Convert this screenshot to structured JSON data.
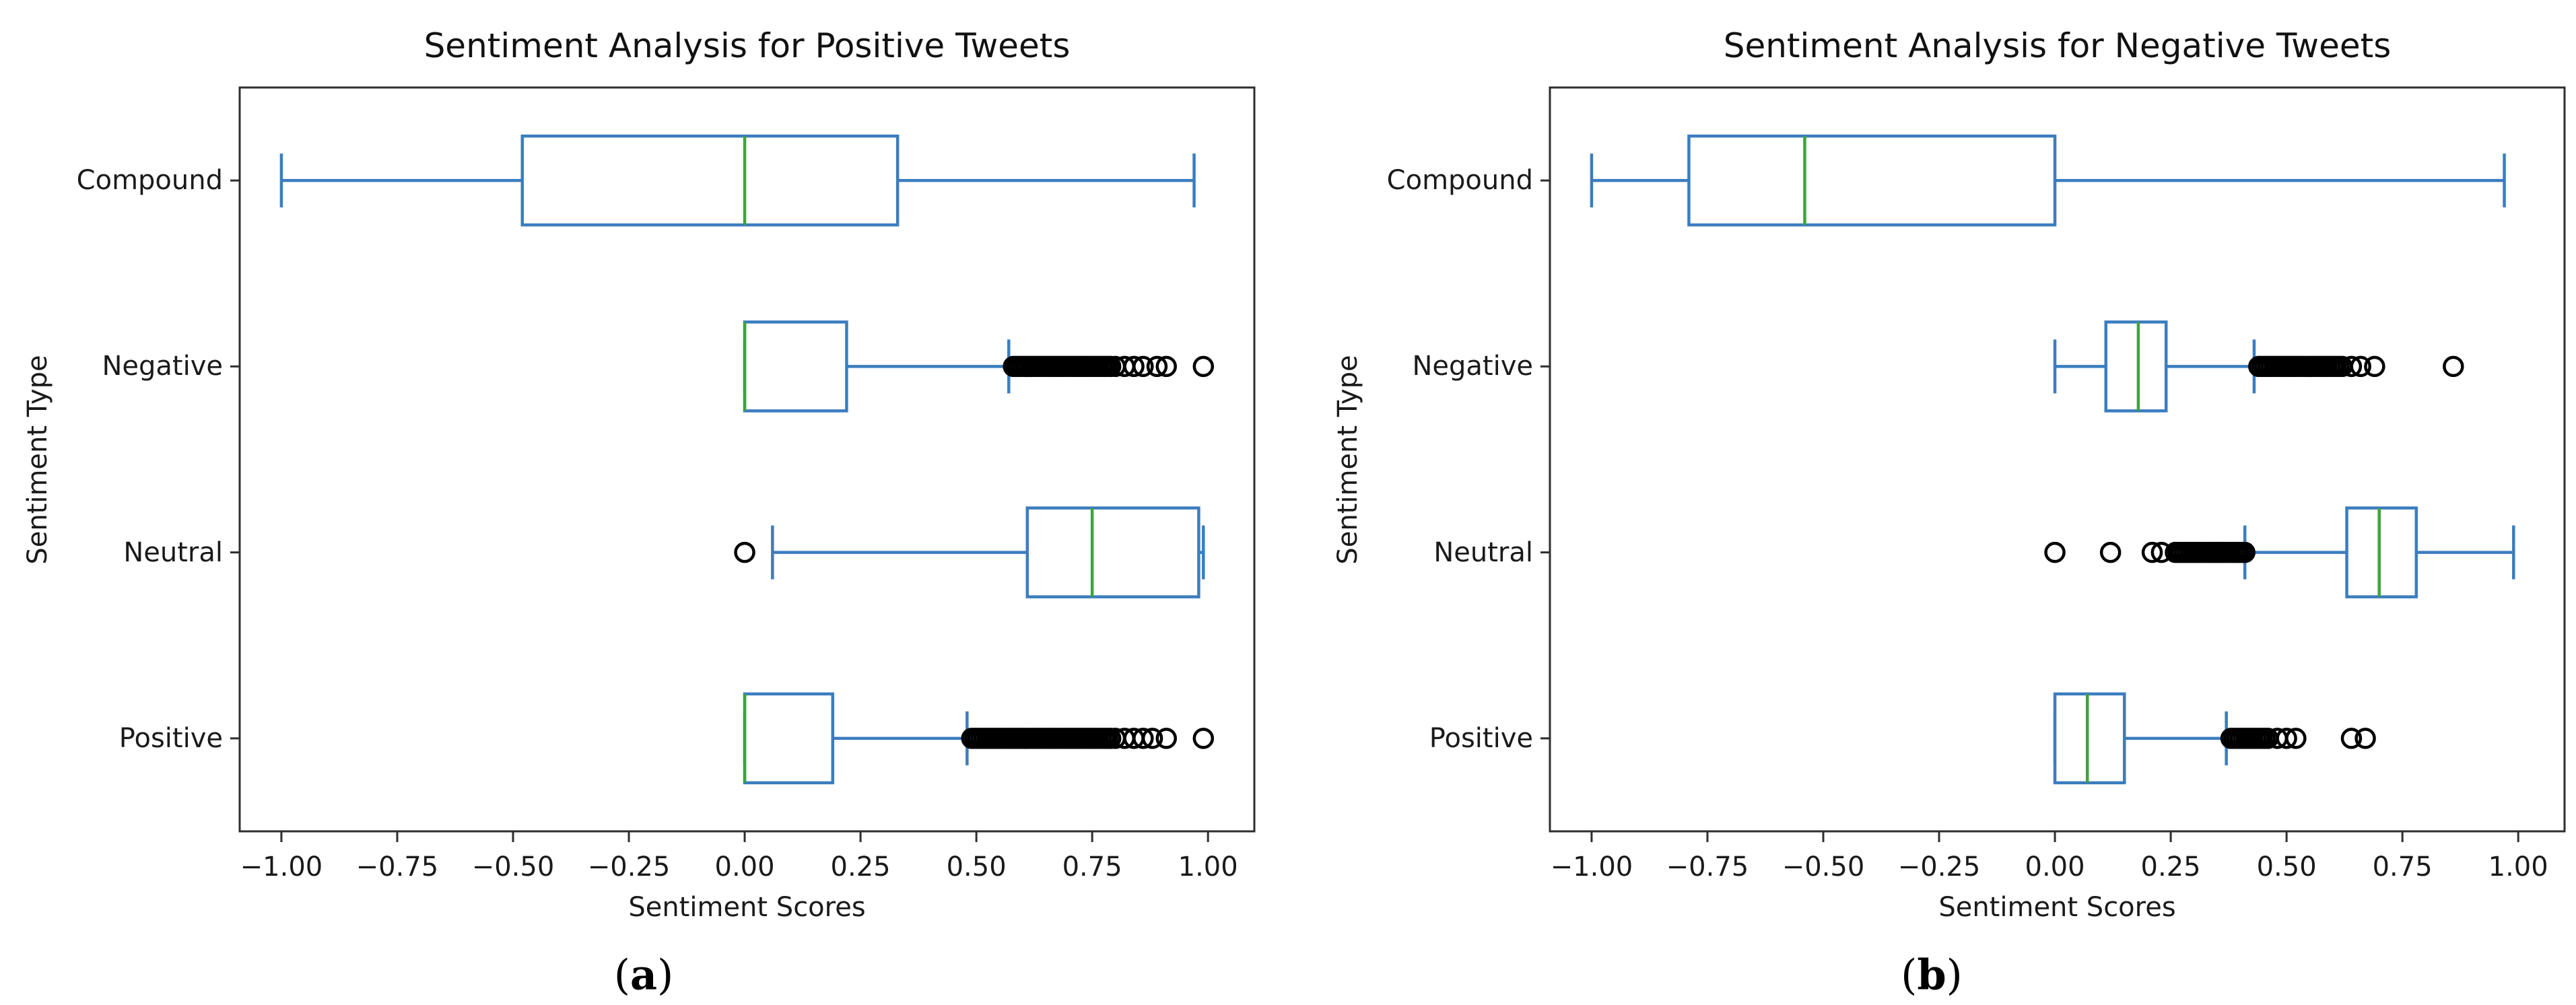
{
  "figure": {
    "background": "#ffffff",
    "captions": [
      {
        "open": "(",
        "letter": "a",
        "close": ")"
      },
      {
        "open": "(",
        "letter": "b",
        "close": ")"
      }
    ]
  },
  "chart_data": [
    {
      "type": "boxplot",
      "orientation": "horizontal",
      "title": "Sentiment Analysis for Positive Tweets",
      "xlabel": "Sentiment Scores",
      "ylabel": "Sentiment Type",
      "caption": "(a)",
      "grid": false,
      "legend": null,
      "xlim": [
        -1.09,
        1.1
      ],
      "xticks": [
        -1.0,
        -0.75,
        -0.5,
        -0.25,
        0.0,
        0.25,
        0.5,
        0.75,
        1.0
      ],
      "xtick_labels": [
        "−1.00",
        "−0.75",
        "−0.50",
        "−0.25",
        "0.00",
        "0.25",
        "0.50",
        "0.75",
        "1.00"
      ],
      "categories": [
        "Compound",
        "Negative",
        "Neutral",
        "Positive"
      ],
      "series": [
        {
          "category": "Compound",
          "whislo": -1.0,
          "q1": -0.48,
          "med": 0.0,
          "q3": 0.33,
          "whishi": 0.97,
          "outliers": [],
          "outlier_clusters": []
        },
        {
          "category": "Negative",
          "whislo": 0.0,
          "q1": 0.0,
          "med": 0.0,
          "q3": 0.22,
          "whishi": 0.57,
          "outliers": [
            0.8,
            0.82,
            0.84,
            0.86,
            0.89,
            0.91,
            0.99
          ],
          "outlier_clusters": [
            {
              "from": 0.58,
              "to": 0.79,
              "count": 34
            }
          ]
        },
        {
          "category": "Neutral",
          "whislo": 0.06,
          "q1": 0.61,
          "med": 0.75,
          "q3": 0.98,
          "whishi": 0.99,
          "outliers": [
            0.0
          ],
          "outlier_clusters": []
        },
        {
          "category": "Positive",
          "whislo": 0.0,
          "q1": 0.0,
          "med": 0.0,
          "q3": 0.19,
          "whishi": 0.48,
          "outliers": [
            0.8,
            0.82,
            0.84,
            0.86,
            0.88,
            0.91,
            0.99
          ],
          "outlier_clusters": [
            {
              "from": 0.49,
              "to": 0.79,
              "count": 46
            }
          ]
        }
      ],
      "colors": {
        "box": "#3b7dbf",
        "median": "#3fa33c",
        "outlier": "#000000",
        "axis": "#2e2e2e",
        "text": "#1a1a1a"
      }
    },
    {
      "type": "boxplot",
      "orientation": "horizontal",
      "title": "Sentiment Analysis for Negative Tweets",
      "xlabel": "Sentiment Scores",
      "ylabel": "Sentiment Type",
      "caption": "(b)",
      "grid": false,
      "legend": null,
      "xlim": [
        -1.09,
        1.1
      ],
      "xticks": [
        -1.0,
        -0.75,
        -0.5,
        -0.25,
        0.0,
        0.25,
        0.5,
        0.75,
        1.0
      ],
      "xtick_labels": [
        "−1.00",
        "−0.75",
        "−0.50",
        "−0.25",
        "0.00",
        "0.25",
        "0.50",
        "0.75",
        "1.00"
      ],
      "categories": [
        "Compound",
        "Negative",
        "Neutral",
        "Positive"
      ],
      "series": [
        {
          "category": "Compound",
          "whislo": -1.0,
          "q1": -0.79,
          "med": -0.54,
          "q3": 0.0,
          "whishi": 0.97,
          "outliers": [],
          "outlier_clusters": []
        },
        {
          "category": "Negative",
          "whislo": 0.0,
          "q1": 0.11,
          "med": 0.18,
          "q3": 0.24,
          "whishi": 0.43,
          "outliers": [
            0.64,
            0.66,
            0.69,
            0.86
          ],
          "outlier_clusters": [
            {
              "from": 0.44,
              "to": 0.62,
              "count": 28
            }
          ]
        },
        {
          "category": "Neutral",
          "whislo": 0.41,
          "q1": 0.63,
          "med": 0.7,
          "q3": 0.78,
          "whishi": 0.99,
          "outliers": [
            0.0,
            0.12,
            0.21,
            0.23
          ],
          "outlier_clusters": [
            {
              "from": 0.26,
              "to": 0.41,
              "count": 24
            }
          ]
        },
        {
          "category": "Positive",
          "whislo": 0.0,
          "q1": 0.0,
          "med": 0.07,
          "q3": 0.15,
          "whishi": 0.37,
          "outliers": [
            0.48,
            0.5,
            0.52,
            0.64,
            0.67
          ],
          "outlier_clusters": [
            {
              "from": 0.38,
              "to": 0.46,
              "count": 13
            }
          ]
        }
      ],
      "colors": {
        "box": "#3b7dbf",
        "median": "#3fa33c",
        "outlier": "#000000",
        "axis": "#2e2e2e",
        "text": "#1a1a1a"
      }
    }
  ]
}
